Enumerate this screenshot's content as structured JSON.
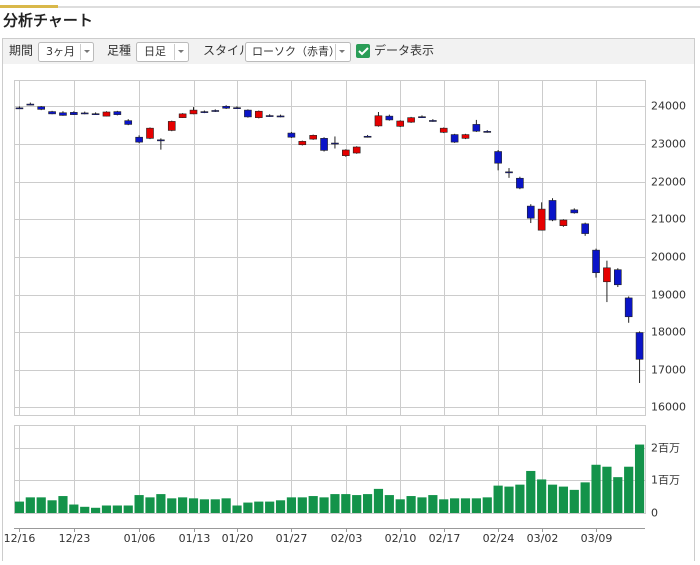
{
  "header": {
    "title": "分析チャート"
  },
  "toolbar": {
    "period_label": "期間",
    "period": "3ヶ月",
    "bar_label": "足種",
    "bar": "日足",
    "style_label": "スタイル",
    "style": "ローソク（赤青）",
    "data_toggle": "データ表示",
    "data_checked": true
  },
  "chart_data": [
    {
      "type": "candlestick",
      "categories": [
        "12/16",
        null,
        null,
        null,
        null,
        "12/23",
        null,
        null,
        null,
        null,
        null,
        "01/06",
        null,
        null,
        null,
        null,
        "01/13",
        null,
        null,
        null,
        "01/20",
        null,
        null,
        null,
        null,
        "01/27",
        null,
        null,
        null,
        null,
        "02/03",
        null,
        null,
        null,
        null,
        "02/10",
        null,
        null,
        null,
        "02/17",
        null,
        null,
        null,
        null,
        "02/24",
        null,
        null,
        null,
        "03/02",
        null,
        null,
        null,
        null,
        "03/09",
        null,
        null,
        null,
        null
      ],
      "open": [
        23960,
        24060,
        23990,
        23860,
        23830,
        23840,
        23825,
        23805,
        23740,
        23860,
        23620,
        23180,
        23150,
        23110,
        23360,
        23700,
        23800,
        23860,
        23890,
        24000,
        23965,
        23900,
        23700,
        23755,
        23745,
        23290,
        22980,
        23130,
        23150,
        23025,
        22690,
        22760,
        23205,
        23480,
        23740,
        23470,
        23580,
        23725,
        23625,
        23310,
        23250,
        23150,
        23520,
        23335,
        22800,
        22260,
        22090,
        21350,
        20710,
        21500,
        20830,
        21250,
        20880,
        20180,
        19340,
        19660,
        18910,
        17990
      ],
      "high": [
        24000,
        24100,
        24010,
        23880,
        23870,
        23870,
        23860,
        23840,
        23870,
        23880,
        23660,
        23230,
        23440,
        23150,
        23620,
        23820,
        23980,
        23890,
        23920,
        24030,
        24000,
        23920,
        23890,
        23790,
        23780,
        23320,
        23090,
        23250,
        23180,
        23200,
        22860,
        22940,
        23240,
        23850,
        23780,
        23630,
        23720,
        23760,
        23660,
        23440,
        23270,
        23270,
        23640,
        23370,
        22840,
        22360,
        22130,
        21400,
        21450,
        21560,
        21000,
        21290,
        20910,
        20220,
        19900,
        19700,
        18950,
        18020
      ],
      "low": [
        23930,
        24030,
        23900,
        23790,
        23750,
        23770,
        23790,
        23770,
        23730,
        23760,
        23500,
        23020,
        23130,
        22850,
        23340,
        23690,
        23790,
        23820,
        23850,
        23930,
        23930,
        23700,
        23680,
        23720,
        23710,
        23160,
        22960,
        23110,
        22800,
        22880,
        22660,
        22740,
        23170,
        23460,
        23620,
        23450,
        23560,
        23690,
        23590,
        23290,
        23030,
        23130,
        23320,
        23300,
        22300,
        22100,
        21800,
        20900,
        20700,
        20950,
        20800,
        21150,
        20560,
        19450,
        18800,
        19200,
        18250,
        16650
      ],
      "close": [
        23950,
        24050,
        23920,
        23800,
        23760,
        23780,
        23815,
        23795,
        23850,
        23780,
        23520,
        23050,
        23420,
        23100,
        23600,
        23800,
        23900,
        23850,
        23880,
        23950,
        23955,
        23720,
        23870,
        23745,
        23740,
        23180,
        23070,
        23230,
        22830,
        23015,
        22840,
        22920,
        23195,
        23750,
        23640,
        23610,
        23700,
        23715,
        23615,
        23420,
        23050,
        23250,
        23340,
        23325,
        22490,
        22250,
        21830,
        21030,
        21270,
        20980,
        20980,
        21170,
        20620,
        19580,
        19710,
        19260,
        18410,
        17280
      ],
      "up_color": "#e60000",
      "down_color": "#0a14c8",
      "ylim": [
        15800,
        24700
      ],
      "yticks": [
        16000,
        17000,
        18000,
        19000,
        20000,
        21000,
        22000,
        23000,
        24000
      ],
      "grid": true
    },
    {
      "type": "bar",
      "values": [
        0.35,
        0.48,
        0.48,
        0.39,
        0.52,
        0.26,
        0.19,
        0.16,
        0.23,
        0.23,
        0.23,
        0.55,
        0.48,
        0.58,
        0.45,
        0.48,
        0.45,
        0.42,
        0.42,
        0.45,
        0.23,
        0.32,
        0.35,
        0.35,
        0.39,
        0.48,
        0.48,
        0.52,
        0.48,
        0.58,
        0.58,
        0.55,
        0.58,
        0.74,
        0.55,
        0.42,
        0.52,
        0.48,
        0.55,
        0.42,
        0.45,
        0.45,
        0.45,
        0.48,
        0.84,
        0.81,
        0.87,
        1.29,
        1.03,
        0.87,
        0.81,
        0.71,
        0.94,
        1.48,
        1.42,
        1.1,
        1.42,
        2.1
      ],
      "color": "#13934a",
      "ylim": [
        0,
        2.7
      ],
      "yticks": [
        0,
        {
          "value": 1,
          "label": "1百万"
        },
        {
          "value": 2,
          "label": "2百万"
        }
      ],
      "grid": true
    }
  ]
}
